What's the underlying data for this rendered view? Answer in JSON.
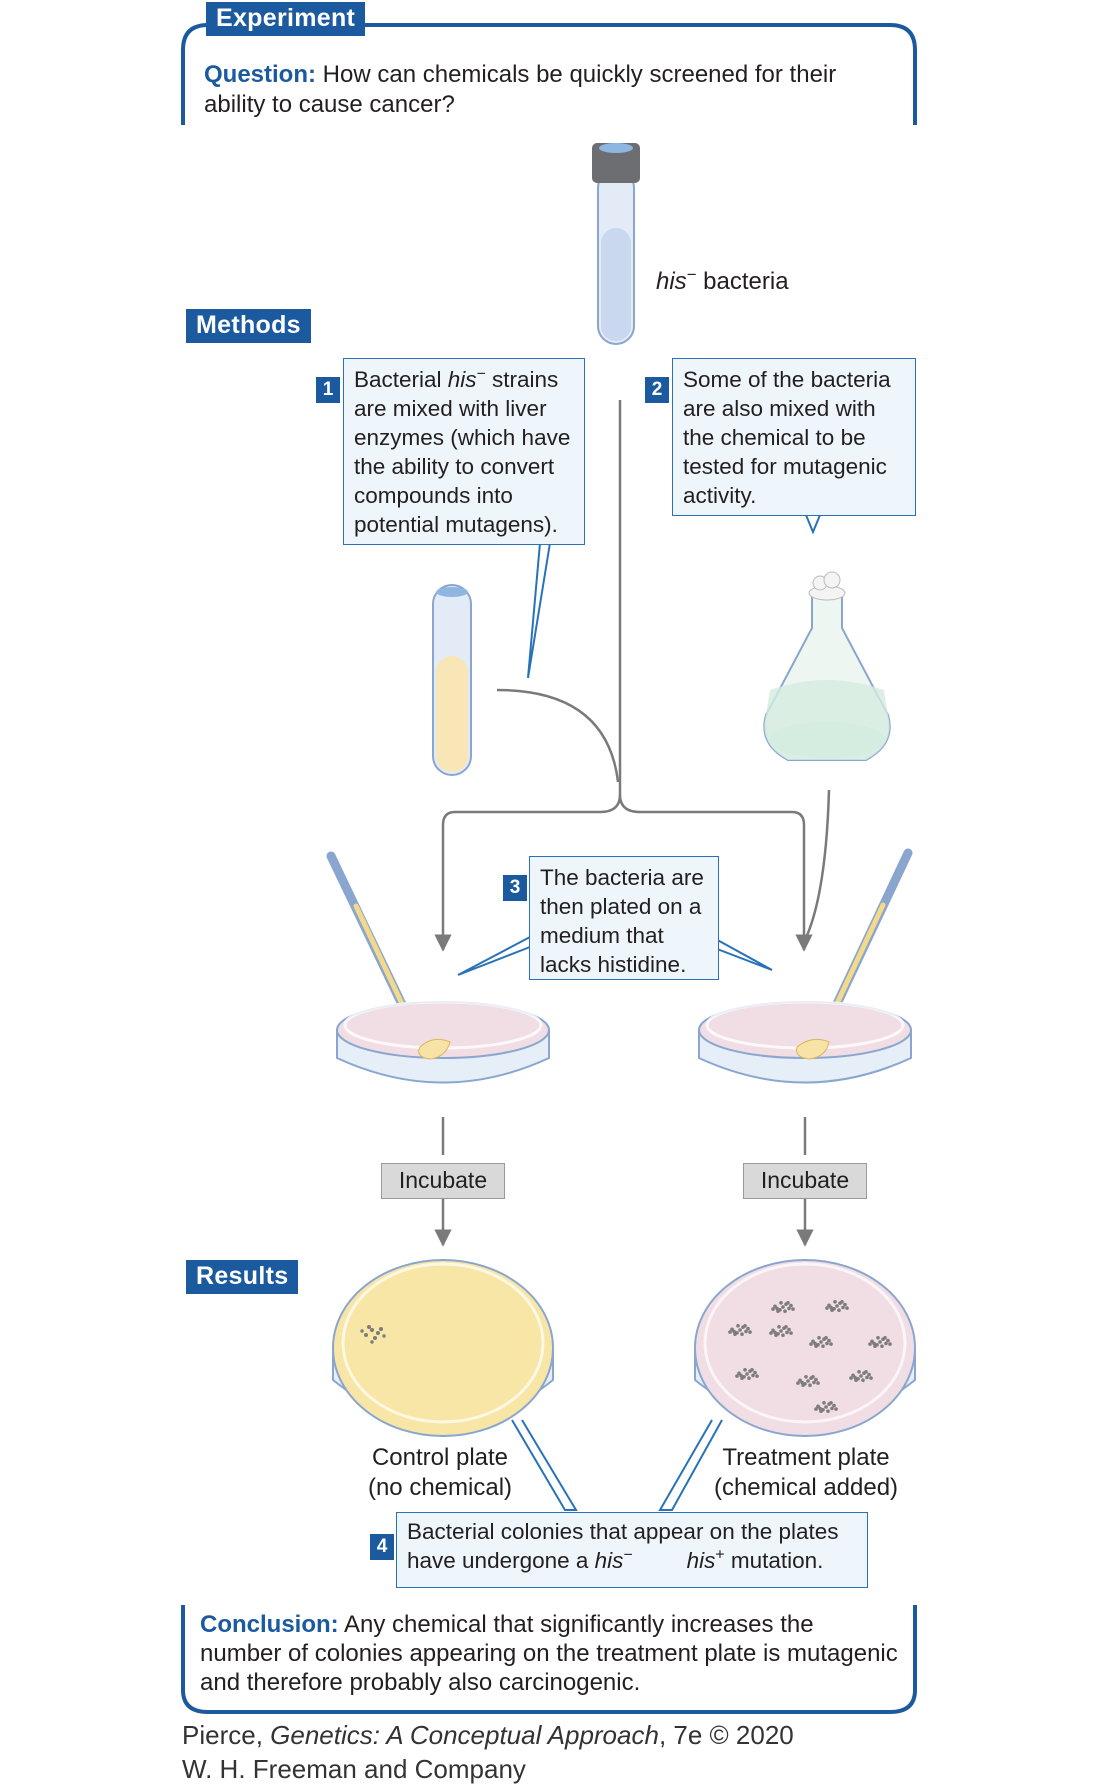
{
  "experiment_tab": "Experiment",
  "question": {
    "label": "Question:",
    "text": "How can chemicals be quickly screened for their ability to cause cancer?"
  },
  "tube_label": {
    "italic": "his",
    "sup": "−",
    "rest": " bacteria"
  },
  "methods_tab": "Methods",
  "step1": {
    "number": "1",
    "pre": "Bacterial ",
    "italic": "his",
    "sup": "−",
    "post": " strains are mixed with liver enzymes (which have the ability to convert compounds into potential mutagens)."
  },
  "step2": {
    "number": "2",
    "text": "Some of the bacteria are also mixed with the chemical to be tested for mutagenic activity."
  },
  "step3": {
    "number": "3",
    "text": "The bacteria are then plated on a medium that lacks histidine."
  },
  "incubate_left": "Incubate",
  "incubate_right": "Incubate",
  "results_tab": "Results",
  "control_plate": {
    "line1": "Control plate",
    "line2": "(no chemical)"
  },
  "treatment_plate": {
    "line1": "Treatment plate",
    "line2": "(chemical added)"
  },
  "step4": {
    "number": "4",
    "line1": "Bacterial colonies that appear on the plates",
    "pre": "have undergone a ",
    "italic1": "his",
    "sup1": "−",
    "italic2": "his",
    "sup2": "+",
    "post": " mutation."
  },
  "conclusion": {
    "label": "Conclusion:",
    "text": "Any chemical that significantly increases the number of colonies appearing on the treatment plate is mutagenic and therefore probably also carcinogenic."
  },
  "credit": {
    "line1_pre": "Pierce, ",
    "line1_italic": "Genetics: A Conceptual Approach",
    "line1_post": ", 7e © 2020",
    "line2": "W. H. Freeman and Company"
  },
  "colors": {
    "accent": "#1c5aa0",
    "callout_border": "#2a72b8",
    "callout_fill": "#eef5fb",
    "plate_pink": "#f1dde4",
    "control_yellow": "#f7e6a6",
    "flask_green": "#d5ece0",
    "tube_blue": "#c9d8ef"
  }
}
